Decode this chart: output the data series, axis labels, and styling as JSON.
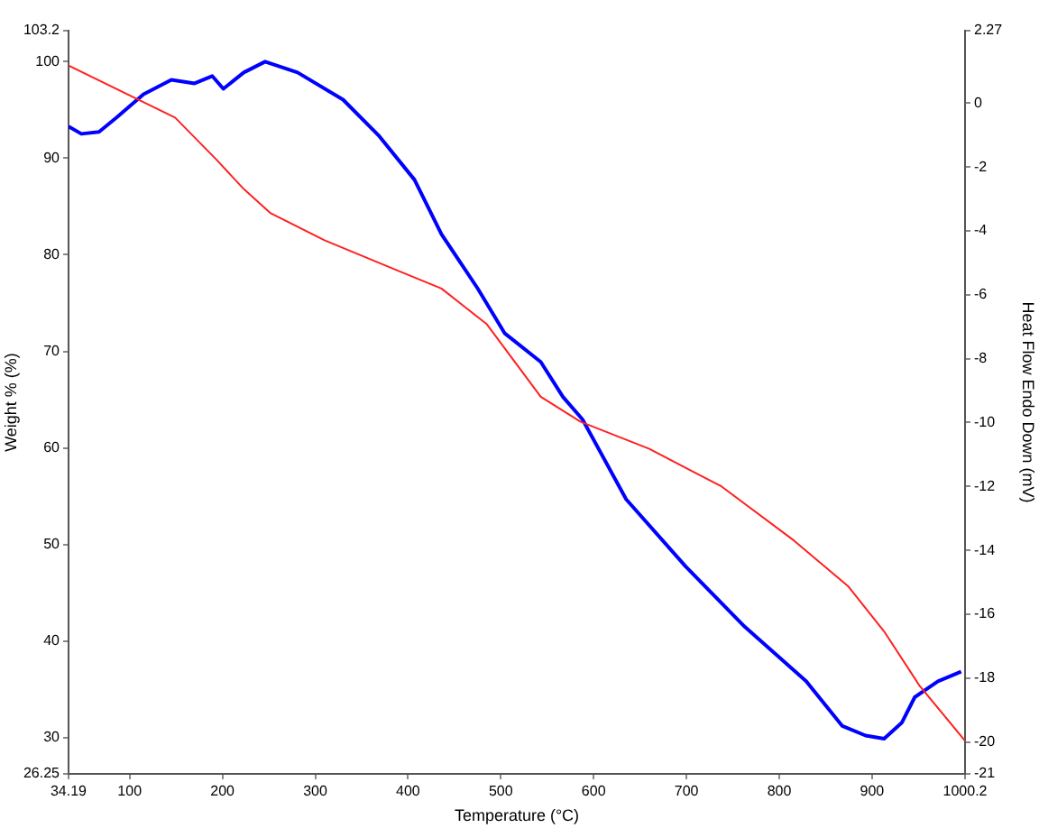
{
  "chart_data": {
    "type": "line",
    "xlabel": "Temperature (°C)",
    "ylabel": "Weight % (%)",
    "y2label": "Heat Flow Endo Down (mV)",
    "xlim": [
      34.19,
      1000.2
    ],
    "xticks": [
      34.19,
      100,
      200,
      300,
      400,
      500,
      600,
      700,
      800,
      900,
      1000.2
    ],
    "ylim": [
      26.25,
      103.2
    ],
    "yticks": [
      26.25,
      30,
      40,
      50,
      60,
      70,
      80,
      90,
      100,
      103.2
    ],
    "y2lim": [
      -21,
      2.27
    ],
    "y2ticks": [
      -21,
      -20,
      -18,
      -16,
      -14,
      -12,
      -10,
      -8,
      -6,
      -4,
      -2,
      0,
      2.27
    ],
    "grid": false,
    "legend": false,
    "marker": "none",
    "line_style": "solid",
    "series": [
      {
        "color": "#ff2020",
        "x": [
          34.19,
          149,
          193,
          223,
          252,
          310,
          388,
          436,
          485,
          543,
          586,
          660,
          738,
          816,
          874,
          913,
          951,
          1000
        ],
        "values": [
          99.6,
          94.2,
          89.9,
          86.8,
          84.3,
          81.5,
          78.4,
          76.5,
          72.8,
          65.3,
          62.7,
          59.9,
          56,
          50.4,
          45.7,
          41,
          35.4,
          29.7
        ]
      },
      {
        "color": "#0000ff",
        "axis": "y2",
        "x": [
          34.19,
          48,
          67,
          86,
          115,
          145,
          170,
          189,
          201,
          223,
          246,
          281,
          330,
          368,
          407,
          436,
          475,
          504,
          543,
          567,
          588,
          635,
          699,
          763,
          829,
          868,
          893,
          913,
          932,
          946,
          971,
          996
        ],
        "values": [
          -0.73,
          -0.96,
          -0.9,
          -0.45,
          0.28,
          0.73,
          0.62,
          0.85,
          0.45,
          0.96,
          1.3,
          0.96,
          0.11,
          -1,
          -2.4,
          -4.1,
          -5.8,
          -7.2,
          -8.1,
          -9.2,
          -9.9,
          -12.4,
          -14.5,
          -16.4,
          -18.1,
          -19.5,
          -19.8,
          -19.9,
          -19.4,
          -18.6,
          -18.1,
          -17.8
        ]
      }
    ]
  }
}
